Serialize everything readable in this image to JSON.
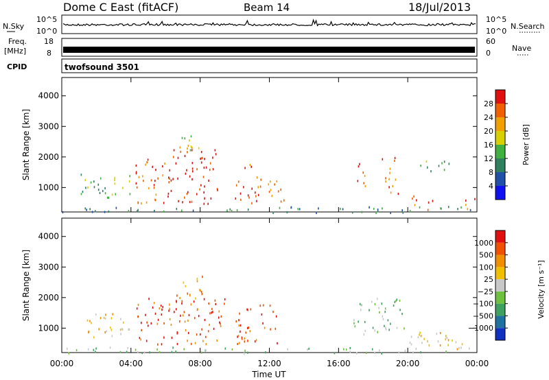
{
  "header": {
    "station": "Dome C East (fitACF)",
    "beam": "Beam 14",
    "date": "18/Jul/2013"
  },
  "strips": {
    "nsky_label": "N.Sky",
    "nsearch_label": "N.Search",
    "noise_ticks_left": [
      "10^5",
      "10^0"
    ],
    "noise_ticks_right": [
      "10^5",
      "10^0"
    ],
    "freq_label_top": "Freq.",
    "freq_label_unit": "[MHz]",
    "freq_ticks": [
      "18",
      "8"
    ],
    "nave_label": "Nave",
    "nave_ticks": [
      "60",
      "0"
    ],
    "cpid_label": "CPID",
    "cpid_text": "twofsound 3501"
  },
  "chart_data": [
    {
      "type": "heatmap",
      "name_ref": "power",
      "ylabel": "Slant Range [km]",
      "yticks": [
        1000,
        2000,
        3000,
        4000
      ],
      "ylim": [
        200,
        4600
      ],
      "xlim": [
        0,
        24
      ],
      "colorbar": {
        "label": "Power [dB]",
        "ticks": [
          "4",
          "8",
          "12",
          "16",
          "20",
          "24",
          "28"
        ],
        "colors": [
          "#1010f0",
          "#2050a8",
          "#308060",
          "#40b040",
          "#d8d000",
          "#f0a000",
          "#f06000",
          "#e01010"
        ]
      },
      "echo_regions": [
        {
          "t0": 0.0,
          "t1": 24.0,
          "r0": 200,
          "r1": 400,
          "level": 2
        },
        {
          "t0": 1.0,
          "t1": 4.0,
          "r0": 700,
          "r1": 1500,
          "level": 3
        },
        {
          "t0": 4.2,
          "t1": 6.0,
          "r0": 500,
          "r1": 2000,
          "level": 6
        },
        {
          "t0": 6.0,
          "t1": 9.0,
          "r0": 500,
          "r1": 2300,
          "level": 7
        },
        {
          "t0": 6.8,
          "t1": 8.0,
          "r0": 2000,
          "r1": 2800,
          "level": 4
        },
        {
          "t0": 10.0,
          "t1": 11.5,
          "r0": 500,
          "r1": 1800,
          "level": 6
        },
        {
          "t0": 11.8,
          "t1": 13.0,
          "r0": 500,
          "r1": 1300,
          "level": 5
        },
        {
          "t0": 17.0,
          "t1": 17.6,
          "r0": 900,
          "r1": 1900,
          "level": 6
        },
        {
          "t0": 18.5,
          "t1": 19.5,
          "r0": 800,
          "r1": 2000,
          "level": 6
        },
        {
          "t0": 20.2,
          "t1": 21.5,
          "r0": 300,
          "r1": 800,
          "level": 6
        },
        {
          "t0": 20.5,
          "t1": 22.5,
          "r0": 1500,
          "r1": 1900,
          "level": 3
        },
        {
          "t0": 23.0,
          "t1": 24.0,
          "r0": 300,
          "r1": 700,
          "level": 6
        }
      ]
    },
    {
      "type": "heatmap",
      "name_ref": "velocity",
      "ylabel": "Slant Range [km]",
      "xlabel": "Time UT",
      "xticks": [
        "00:00",
        "04:00",
        "08:00",
        "12:00",
        "16:00",
        "20:00",
        "00:00"
      ],
      "yticks": [
        1000,
        2000,
        3000,
        4000
      ],
      "ylim": [
        200,
        4600
      ],
      "xlim": [
        0,
        24
      ],
      "colorbar": {
        "label": "Velocity [m s⁻¹]",
        "ticks": [
          "1000",
          "500",
          "100",
          "25",
          "−25",
          "−100",
          "−500",
          "−1000"
        ],
        "colors": [
          "#1030c0",
          "#2070a0",
          "#40a060",
          "#70c040",
          "#c8c8c8",
          "#f0c000",
          "#f09000",
          "#f05000",
          "#e01010"
        ]
      },
      "echo_regions": [
        {
          "t0": 0.0,
          "t1": 24.0,
          "r0": 200,
          "r1": 400,
          "level": 3
        },
        {
          "t0": 1.0,
          "t1": 4.0,
          "r0": 700,
          "r1": 1500,
          "level": 5
        },
        {
          "t0": 4.2,
          "t1": 9.5,
          "r0": 500,
          "r1": 2000,
          "level": 7
        },
        {
          "t0": 6.5,
          "t1": 8.2,
          "r0": 2000,
          "r1": 2800,
          "level": 6
        },
        {
          "t0": 10.0,
          "t1": 12.5,
          "r0": 500,
          "r1": 1800,
          "level": 7
        },
        {
          "t0": 16.8,
          "t1": 19.8,
          "r0": 800,
          "r1": 2000,
          "level": 3
        },
        {
          "t0": 20.0,
          "t1": 24.0,
          "r0": 300,
          "r1": 900,
          "level": 5
        }
      ]
    }
  ]
}
